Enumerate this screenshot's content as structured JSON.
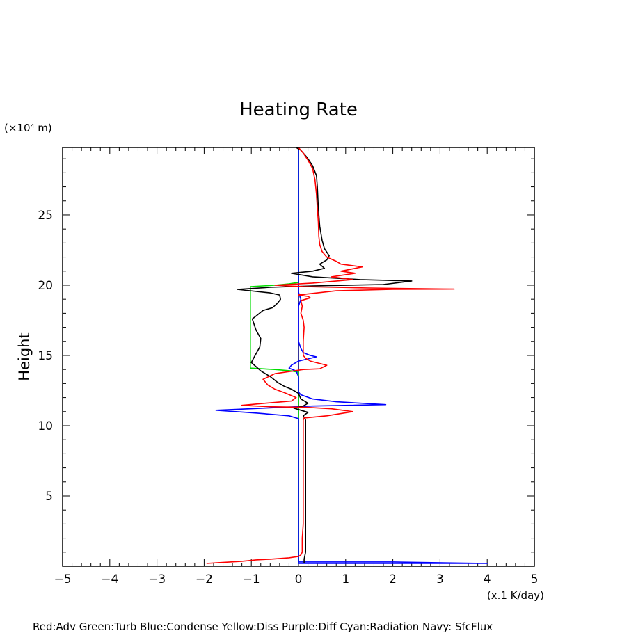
{
  "chart_data": {
    "type": "line",
    "title": "Heating Rate",
    "ylabel": "Height",
    "yunit": "(×10⁴ m)",
    "xunit": "(x.1 K/day)",
    "xlim": [
      -5,
      5
    ],
    "ylim": [
      0,
      29.8
    ],
    "xticks": [
      "−5",
      "−4",
      "−3",
      "−2",
      "−1",
      "0",
      "1",
      "2",
      "3",
      "4",
      "5"
    ],
    "yticks": [
      "5",
      "10",
      "15",
      "20",
      "25"
    ],
    "legend_text": "Red:Adv  Green:Turb  Blue:Condense  Yellow:Diss  Purple:Diff  Cyan:Radiation  Navy: SfcFlux",
    "colors": {
      "black": "#000000",
      "red": "#ff0000",
      "green": "#00dd00",
      "blue": "#0000ff",
      "navy": "#000080"
    },
    "series": [
      {
        "color": "navy",
        "points": [
          [
            0,
            0.2
          ],
          [
            0,
            29.8
          ]
        ]
      },
      {
        "color": "green",
        "points": [
          [
            0,
            0.2
          ],
          [
            0,
            13.8
          ],
          [
            -0.15,
            13.9
          ],
          [
            -0.5,
            14.0
          ],
          [
            -1.02,
            14.1
          ],
          [
            -1.02,
            19.9
          ],
          [
            -0.5,
            20.0
          ],
          [
            -0.2,
            20.1
          ],
          [
            0,
            20.2
          ],
          [
            0,
            29.8
          ]
        ]
      },
      {
        "color": "blue",
        "points": [
          [
            0,
            0.2
          ],
          [
            4.0,
            0.2
          ],
          [
            2.0,
            0.3
          ],
          [
            0,
            0.3
          ],
          [
            0,
            10.5
          ],
          [
            -0.2,
            10.7
          ],
          [
            -0.9,
            10.9
          ],
          [
            -1.75,
            11.1
          ],
          [
            -0.7,
            11.25
          ],
          [
            0.3,
            11.4
          ],
          [
            1.85,
            11.5
          ],
          [
            0.8,
            11.7
          ],
          [
            0.3,
            11.9
          ],
          [
            0.05,
            12.2
          ],
          [
            0,
            12.4
          ],
          [
            0,
            13.5
          ],
          [
            -0.05,
            13.9
          ],
          [
            -0.2,
            14.1
          ],
          [
            -0.15,
            14.3
          ],
          [
            0,
            14.6
          ],
          [
            0.2,
            14.75
          ],
          [
            0.38,
            14.9
          ],
          [
            0.25,
            15.0
          ],
          [
            0.1,
            15.2
          ],
          [
            0.05,
            15.5
          ],
          [
            0,
            16
          ],
          [
            0,
            18.5
          ],
          [
            0.05,
            19
          ],
          [
            0,
            19.5
          ],
          [
            0,
            29.8
          ]
        ]
      },
      {
        "color": "black",
        "points": [
          [
            0.12,
            0.2
          ],
          [
            0.12,
            0.5
          ],
          [
            0.15,
            1.0
          ],
          [
            0.15,
            5.0
          ],
          [
            0.15,
            10.4
          ],
          [
            0.1,
            10.7
          ],
          [
            0.2,
            10.95
          ],
          [
            0.05,
            11.1
          ],
          [
            -0.1,
            11.25
          ],
          [
            0.1,
            11.4
          ],
          [
            0.2,
            11.6
          ],
          [
            0.05,
            11.9
          ],
          [
            0,
            12.3
          ],
          [
            -0.15,
            12.6
          ],
          [
            -0.3,
            12.8
          ],
          [
            -0.45,
            13.1
          ],
          [
            -0.6,
            13.5
          ],
          [
            -0.8,
            13.9
          ],
          [
            -0.9,
            14.2
          ],
          [
            -1.0,
            14.5
          ],
          [
            -0.92,
            15.0
          ],
          [
            -0.82,
            15.6
          ],
          [
            -0.8,
            16.2
          ],
          [
            -0.9,
            16.8
          ],
          [
            -0.95,
            17.3
          ],
          [
            -0.98,
            17.6
          ],
          [
            -0.9,
            17.8
          ],
          [
            -0.75,
            18.2
          ],
          [
            -0.55,
            18.4
          ],
          [
            -0.45,
            18.7
          ],
          [
            -0.38,
            19.0
          ],
          [
            -0.4,
            19.3
          ],
          [
            -0.6,
            19.45
          ],
          [
            -1.3,
            19.7
          ],
          [
            -0.6,
            19.85
          ],
          [
            0.3,
            19.95
          ],
          [
            1.8,
            20.05
          ],
          [
            2.4,
            20.3
          ],
          [
            1.3,
            20.4
          ],
          [
            0.3,
            20.6
          ],
          [
            -0.15,
            20.85
          ],
          [
            0.3,
            21.0
          ],
          [
            0.55,
            21.2
          ],
          [
            0.45,
            21.5
          ],
          [
            0.6,
            21.8
          ],
          [
            0.65,
            22.1
          ],
          [
            0.55,
            22.6
          ],
          [
            0.5,
            23.2
          ],
          [
            0.45,
            24.2
          ],
          [
            0.42,
            25.5
          ],
          [
            0.4,
            27.0
          ],
          [
            0.38,
            27.8
          ],
          [
            0.3,
            28.5
          ],
          [
            0.18,
            29.1
          ],
          [
            0.05,
            29.6
          ],
          [
            -0.05,
            29.8
          ]
        ]
      },
      {
        "color": "red",
        "points": [
          [
            -1.95,
            0.2
          ],
          [
            -1.7,
            0.25
          ],
          [
            -1.2,
            0.35
          ],
          [
            -0.9,
            0.45
          ],
          [
            -0.6,
            0.5
          ],
          [
            -0.2,
            0.6
          ],
          [
            0,
            0.7
          ],
          [
            0.05,
            0.8
          ],
          [
            0.08,
            1.0
          ],
          [
            0.08,
            2.0
          ],
          [
            0.1,
            3.0
          ],
          [
            0.1,
            6.0
          ],
          [
            0.1,
            9.0
          ],
          [
            0.1,
            10.4
          ],
          [
            0.12,
            10.55
          ],
          [
            0.6,
            10.7
          ],
          [
            1.15,
            11.0
          ],
          [
            0.7,
            11.2
          ],
          [
            0.2,
            11.3
          ],
          [
            -0.6,
            11.35
          ],
          [
            -1.2,
            11.45
          ],
          [
            -0.7,
            11.6
          ],
          [
            -0.15,
            11.75
          ],
          [
            -0.05,
            12.0
          ],
          [
            -0.3,
            12.35
          ],
          [
            -0.5,
            12.6
          ],
          [
            -0.65,
            12.9
          ],
          [
            -0.75,
            13.3
          ],
          [
            -0.5,
            13.7
          ],
          [
            0.1,
            14.0
          ],
          [
            0.45,
            14.05
          ],
          [
            0.6,
            14.3
          ],
          [
            0.25,
            14.6
          ],
          [
            0.15,
            14.8
          ],
          [
            0.1,
            15.0
          ],
          [
            0.1,
            16.0
          ],
          [
            0.12,
            17.0
          ],
          [
            0.1,
            17.5
          ],
          [
            0.05,
            18.0
          ],
          [
            0.08,
            18.5
          ],
          [
            0.05,
            18.9
          ],
          [
            0.25,
            19.1
          ],
          [
            0.2,
            19.2
          ],
          [
            0,
            19.3
          ],
          [
            0.8,
            19.6
          ],
          [
            2.0,
            19.7
          ],
          [
            3.3,
            19.72
          ],
          [
            1.5,
            19.8
          ],
          [
            0.1,
            19.9
          ],
          [
            -0.5,
            20.0
          ],
          [
            0.3,
            20.15
          ],
          [
            1.15,
            20.4
          ],
          [
            0.7,
            20.6
          ],
          [
            1.2,
            20.85
          ],
          [
            0.9,
            21.0
          ],
          [
            1.35,
            21.3
          ],
          [
            0.9,
            21.5
          ],
          [
            0.8,
            21.7
          ],
          [
            0.6,
            22.0
          ],
          [
            0.5,
            22.4
          ],
          [
            0.45,
            22.9
          ],
          [
            0.43,
            23.5
          ],
          [
            0.42,
            24.5
          ],
          [
            0.4,
            25.5
          ],
          [
            0.38,
            26.5
          ],
          [
            0.35,
            27.5
          ],
          [
            0.3,
            28.3
          ],
          [
            0.2,
            28.9
          ],
          [
            0.1,
            29.4
          ],
          [
            0,
            29.8
          ]
        ]
      }
    ]
  }
}
